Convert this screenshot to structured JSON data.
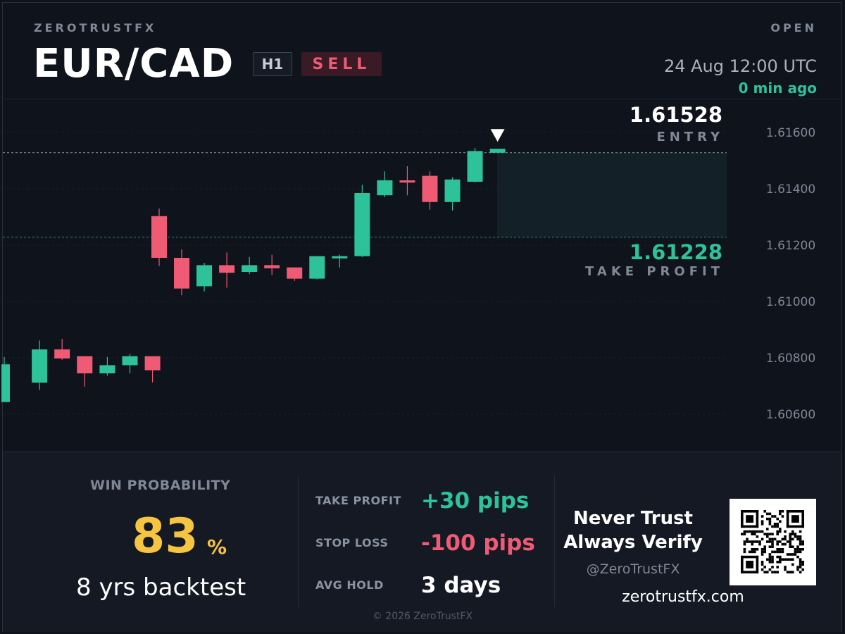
{
  "header": {
    "brand": "ZEROTRUSTFX",
    "status": "OPEN",
    "pair": "EUR/CAD",
    "timeframe": "H1",
    "side": "SELL",
    "timestamp": "24 Aug 12:00  UTC",
    "updated": "0 min ago"
  },
  "levels": {
    "entry_price": "1.61528",
    "entry_label": "ENTRY",
    "tp_price": "1.61228",
    "tp_label": "TAKE PROFIT"
  },
  "stats": {
    "win_label": "WIN PROBABILITY",
    "win_value": "83",
    "win_unit": "%",
    "backtest": "8 yrs backtest",
    "rows": [
      {
        "label": "TAKE PROFIT",
        "value": "+30 pips",
        "color": "#2ec29a"
      },
      {
        "label": "STOP LOSS",
        "value": "-100 pips",
        "color": "#ef5b74"
      },
      {
        "label": "AVG HOLD",
        "value": "3 days",
        "color": "#ffffff"
      }
    ]
  },
  "promo": {
    "slogan_line1": "Never Trust",
    "slogan_line2": "Always Verify",
    "handle": "@ZeroTrustFX",
    "site": "zerotrustfx.com",
    "qr_icon": "qr-code-icon"
  },
  "footer": {
    "copyright": "© 2026 ZeroTrustFX"
  },
  "colors": {
    "bull": "#2ec29a",
    "bear": "#ef5b74",
    "accent": "#f5c542"
  },
  "chart_data": {
    "type": "candlestick",
    "y_ticks": [
      "1.61600",
      "1.61400",
      "1.61200",
      "1.61000",
      "1.60800",
      "1.60600"
    ],
    "tick_values": [
      1.616,
      1.614,
      1.612,
      1.61,
      1.608,
      1.606
    ],
    "ylim": [
      1.6047,
      1.6172
    ],
    "entry": 1.61528,
    "take_profit": 1.61228,
    "candles": [
      {
        "o": 1.60643,
        "h": 1.60803,
        "l": 1.60643,
        "c": 1.60777
      },
      {
        "o": 1.60712,
        "h": 1.60862,
        "l": 1.60686,
        "c": 1.6083
      },
      {
        "o": 1.6083,
        "h": 1.60867,
        "l": 1.60793,
        "c": 1.60798
      },
      {
        "o": 1.60806,
        "h": 1.60806,
        "l": 1.60698,
        "c": 1.60745
      },
      {
        "o": 1.60745,
        "h": 1.60803,
        "l": 1.60737,
        "c": 1.60774
      },
      {
        "o": 1.60774,
        "h": 1.60814,
        "l": 1.60745,
        "c": 1.60806
      },
      {
        "o": 1.60806,
        "h": 1.60806,
        "l": 1.60713,
        "c": 1.60756
      },
      {
        "o": 1.61303,
        "h": 1.6133,
        "l": 1.61126,
        "c": 1.61155
      },
      {
        "o": 1.61155,
        "h": 1.61185,
        "l": 1.61022,
        "c": 1.61046
      },
      {
        "o": 1.61054,
        "h": 1.61137,
        "l": 1.61036,
        "c": 1.61129
      },
      {
        "o": 1.61129,
        "h": 1.61174,
        "l": 1.61049,
        "c": 1.61102
      },
      {
        "o": 1.61105,
        "h": 1.61158,
        "l": 1.61097,
        "c": 1.61129
      },
      {
        "o": 1.61129,
        "h": 1.61166,
        "l": 1.61094,
        "c": 1.61118
      },
      {
        "o": 1.61121,
        "h": 1.61121,
        "l": 1.61073,
        "c": 1.61081
      },
      {
        "o": 1.61081,
        "h": 1.61158,
        "l": 1.61078,
        "c": 1.61161
      },
      {
        "o": 1.61153,
        "h": 1.61166,
        "l": 1.61121,
        "c": 1.61161
      },
      {
        "o": 1.61161,
        "h": 1.61414,
        "l": 1.61158,
        "c": 1.61385
      },
      {
        "o": 1.61377,
        "h": 1.61462,
        "l": 1.6137,
        "c": 1.6143
      },
      {
        "o": 1.6143,
        "h": 1.6148,
        "l": 1.61377,
        "c": 1.61422
      },
      {
        "o": 1.61446,
        "h": 1.61462,
        "l": 1.61326,
        "c": 1.61353
      },
      {
        "o": 1.61353,
        "h": 1.61441,
        "l": 1.61323,
        "c": 1.61433
      },
      {
        "o": 1.61425,
        "h": 1.61545,
        "l": 1.61422,
        "c": 1.61534
      },
      {
        "o": 1.61528,
        "h": 1.61542,
        "l": 1.61528,
        "c": 1.61542
      }
    ]
  }
}
